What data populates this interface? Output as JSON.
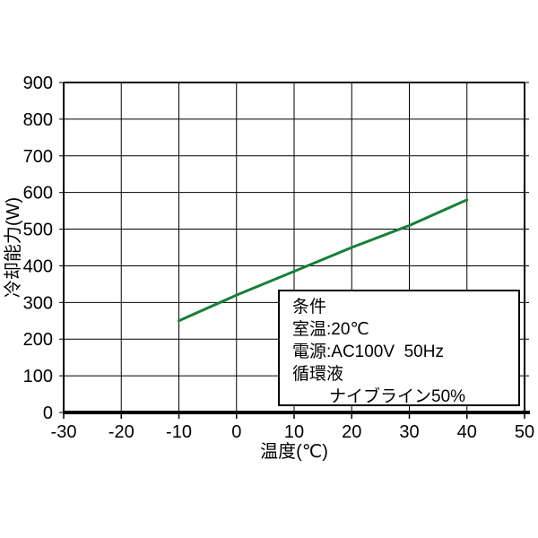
{
  "page": {
    "background": "#ffffff"
  },
  "chart_data": {
    "type": "line",
    "title": "",
    "xlabel": "温度(℃)",
    "ylabel": "冷却能力(W)",
    "xlim": [
      -30,
      50
    ],
    "ylim": [
      0,
      900
    ],
    "x_ticks": [
      -30,
      -20,
      -10,
      0,
      10,
      20,
      30,
      40,
      50
    ],
    "x_tick_labels": [
      "-30",
      "-20",
      "-10",
      "0",
      "10",
      "20",
      "30",
      "40",
      "50"
    ],
    "y_ticks": [
      0,
      100,
      200,
      300,
      400,
      500,
      600,
      700,
      800,
      900
    ],
    "y_tick_labels": [
      "0",
      "100",
      "200",
      "300",
      "400",
      "500",
      "600",
      "700",
      "800",
      "900"
    ],
    "grid": true,
    "legend_position": "none",
    "series": [
      {
        "name": "冷却能力",
        "color": "#168038",
        "x": [
          -10,
          0,
          10,
          20,
          30,
          40
        ],
        "y": [
          250,
          320,
          385,
          450,
          510,
          580
        ]
      }
    ]
  },
  "condition_box": {
    "lines": [
      "条件",
      "室温:20℃",
      "電源:AC100V  50Hz",
      "循環液",
      "ナイブライン50%"
    ]
  },
  "colors": {
    "line": "#168038",
    "axis": "#000000",
    "grid": "#000000",
    "text": "#000000",
    "box_border": "#000000",
    "box_bg": "#ffffff"
  }
}
